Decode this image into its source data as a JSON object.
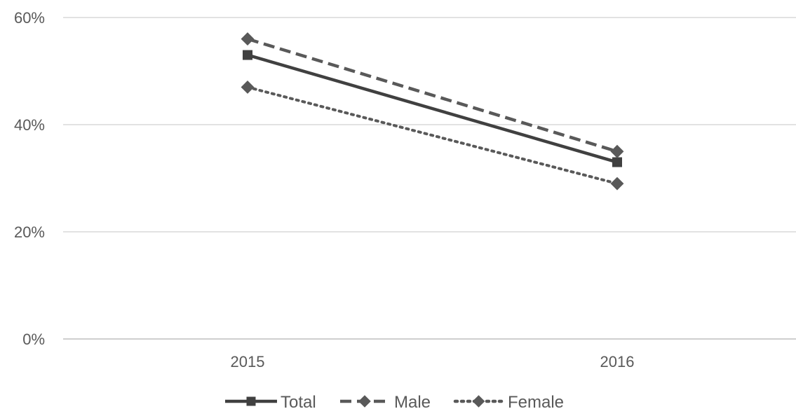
{
  "chart_data": {
    "type": "line",
    "categories": [
      "2015",
      "2016"
    ],
    "y_ticks": [
      "0%",
      "20%",
      "40%",
      "60%"
    ],
    "ylim": [
      0,
      60
    ],
    "grid": true,
    "legend_position": "bottom",
    "series": [
      {
        "name": "Total",
        "values": [
          53,
          33
        ],
        "marker": "square",
        "dash": "solid",
        "color": "#404040"
      },
      {
        "name": "Male",
        "values": [
          56,
          35
        ],
        "marker": "diamond",
        "dash": "dashed",
        "color": "#595959"
      },
      {
        "name": "Female",
        "values": [
          47,
          29
        ],
        "marker": "diamond",
        "dash": "dotted",
        "color": "#595959"
      }
    ]
  }
}
